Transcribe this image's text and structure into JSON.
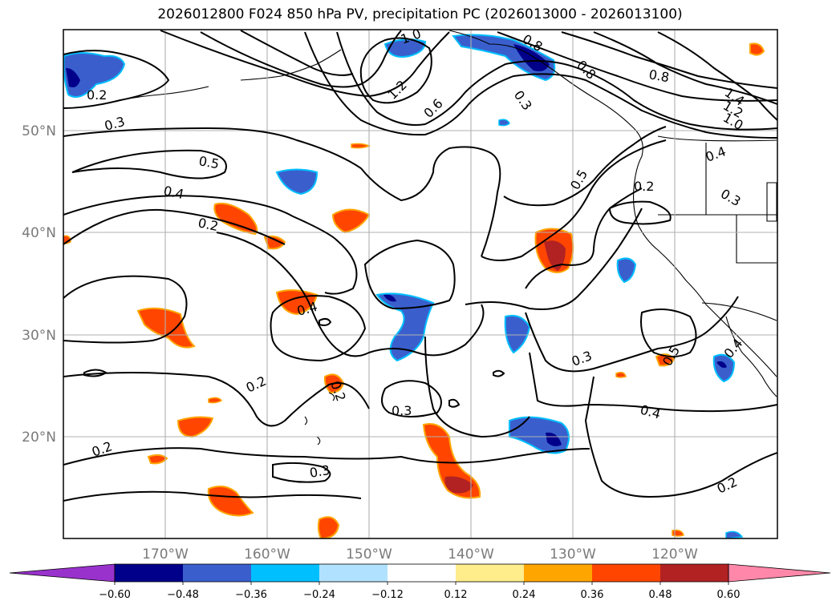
{
  "title": "2026012800 F024 850 hPa PV, precipitation PC (2026013000 - 2026013100)",
  "lon_labels": [
    "170°W",
    "160°W",
    "150°W",
    "140°W",
    "130°W",
    "120°W"
  ],
  "lat_labels": [
    "50°N",
    "40°N",
    "30°N",
    "20°N"
  ],
  "colorbar": {
    "colors": [
      "#9932cc",
      "#00008b",
      "#3a5fcd",
      "#00bfff",
      "#b0e2ff",
      "#ffffff",
      "#ffec8b",
      "#ffa500",
      "#ff4500",
      "#b22222",
      "#ff88aa"
    ],
    "tick_labels": [
      "−0.60",
      "−0.48",
      "−0.36",
      "−0.24",
      "−0.12",
      "0.12",
      "0.24",
      "0.36",
      "0.48",
      "0.60"
    ]
  },
  "contour_labels": [
    "0.2",
    "0.3",
    "0.5",
    "0.4",
    "0.2",
    "1.0",
    "1.2",
    "0.6",
    "0.8",
    "0.8",
    "0.8",
    "1.4",
    "1.2",
    "1.0",
    "0.4",
    "0.3",
    "0.2",
    "0.5",
    "0.4",
    "0.3",
    "0.2",
    "0.2",
    "0.3",
    "0.2",
    "0.3",
    "0.4",
    "0.5",
    "0.2",
    "0.4",
    "0.3"
  ]
}
